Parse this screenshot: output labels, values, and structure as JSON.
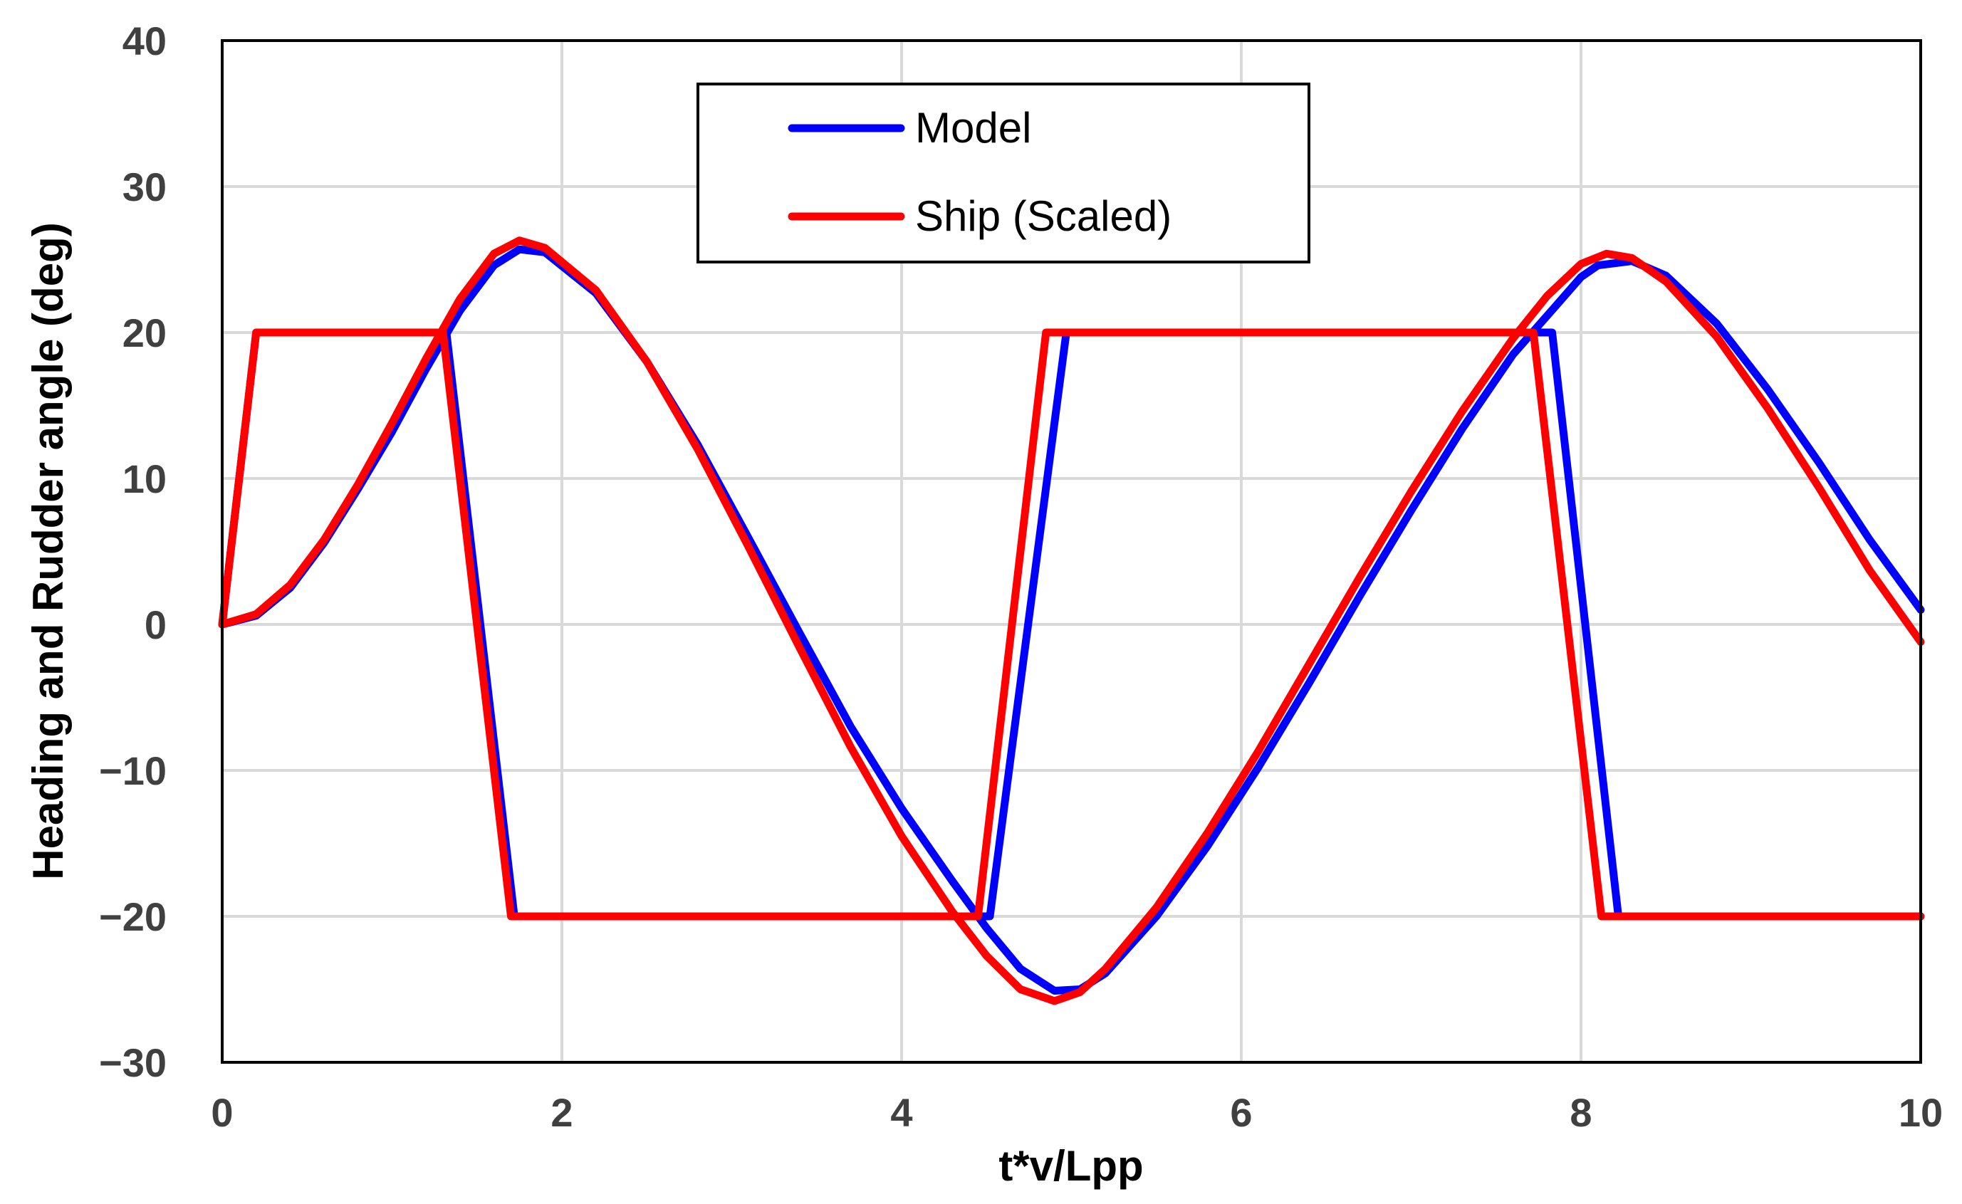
{
  "chart_data": {
    "type": "line",
    "title": "",
    "xlabel": "t*v/Lpp",
    "ylabel": "Heading and Rudder angle (deg)",
    "xlim": [
      0,
      10
    ],
    "ylim": [
      -30,
      40
    ],
    "xticks": [
      0,
      2,
      4,
      6,
      8,
      10
    ],
    "yticks": [
      -30,
      -20,
      -10,
      0,
      10,
      20,
      30,
      40
    ],
    "xtick_labels": [
      "0",
      "2",
      "4",
      "6",
      "8",
      "10"
    ],
    "ytick_labels": [
      "−30",
      "−20",
      "−10",
      "0",
      "10",
      "20",
      "30",
      "40"
    ],
    "grid": true,
    "legend": {
      "position": "top-center",
      "entries": [
        "Model",
        "Ship (Scaled)"
      ]
    },
    "series": [
      {
        "name": "Model",
        "kind": "heading",
        "color": "#0000ff",
        "x": [
          0,
          0.2,
          0.4,
          0.6,
          0.8,
          1.0,
          1.2,
          1.4,
          1.6,
          1.75,
          1.9,
          2.2,
          2.5,
          2.8,
          3.1,
          3.4,
          3.7,
          4.0,
          4.3,
          4.5,
          4.7,
          4.9,
          5.05,
          5.2,
          5.5,
          5.8,
          6.1,
          6.4,
          6.7,
          7.0,
          7.3,
          7.6,
          7.85,
          8.0,
          8.1,
          8.3,
          8.5,
          8.8,
          9.1,
          9.4,
          9.7,
          10.0
        ],
        "y": [
          0,
          0.6,
          2.5,
          5.6,
          9.3,
          13.2,
          17.5,
          21.5,
          24.6,
          25.7,
          25.5,
          22.7,
          18.0,
          12.3,
          5.9,
          -0.6,
          -7.0,
          -12.6,
          -17.6,
          -20.8,
          -23.6,
          -25.1,
          -25.0,
          -23.9,
          -20.0,
          -15.2,
          -9.8,
          -4.0,
          2.0,
          7.8,
          13.4,
          18.5,
          21.8,
          23.8,
          24.6,
          24.9,
          23.9,
          20.6,
          16.1,
          11.1,
          5.8,
          1.0
        ]
      },
      {
        "name": "Model",
        "kind": "rudder",
        "color": "#0000ff",
        "x": [
          0,
          0.2,
          1.32,
          1.72,
          4.52,
          4.97,
          7.83,
          8.22,
          10.0
        ],
        "y": [
          0,
          20,
          20,
          -20,
          -20,
          20,
          20,
          -20,
          -20
        ]
      },
      {
        "name": "Ship (Scaled)",
        "kind": "heading",
        "color": "#ff0000",
        "x": [
          0,
          0.2,
          0.4,
          0.6,
          0.8,
          1.0,
          1.2,
          1.4,
          1.6,
          1.75,
          1.9,
          2.2,
          2.5,
          2.8,
          3.1,
          3.4,
          3.7,
          4.0,
          4.3,
          4.5,
          4.7,
          4.9,
          5.05,
          5.2,
          5.5,
          5.8,
          6.1,
          6.4,
          6.7,
          7.0,
          7.3,
          7.6,
          7.8,
          8.0,
          8.15,
          8.3,
          8.5,
          8.8,
          9.1,
          9.4,
          9.7,
          10.0
        ],
        "y": [
          0,
          0.7,
          2.7,
          5.8,
          9.6,
          13.8,
          18.2,
          22.3,
          25.4,
          26.3,
          25.8,
          22.9,
          18.0,
          12.0,
          5.3,
          -1.6,
          -8.4,
          -14.5,
          -19.7,
          -22.7,
          -25.0,
          -25.8,
          -25.2,
          -23.6,
          -19.4,
          -14.3,
          -8.7,
          -2.7,
          3.3,
          9.1,
          14.6,
          19.6,
          22.5,
          24.7,
          25.4,
          25.1,
          23.5,
          19.7,
          14.8,
          9.4,
          3.7,
          -1.2
        ]
      },
      {
        "name": "Ship (Scaled)",
        "kind": "rudder",
        "color": "#ff0000",
        "x": [
          0,
          0.2,
          1.3,
          1.7,
          4.45,
          4.85,
          7.72,
          8.12,
          10.0
        ],
        "y": [
          0,
          20,
          20,
          -20,
          -20,
          20,
          20,
          -20,
          -20
        ]
      }
    ]
  }
}
